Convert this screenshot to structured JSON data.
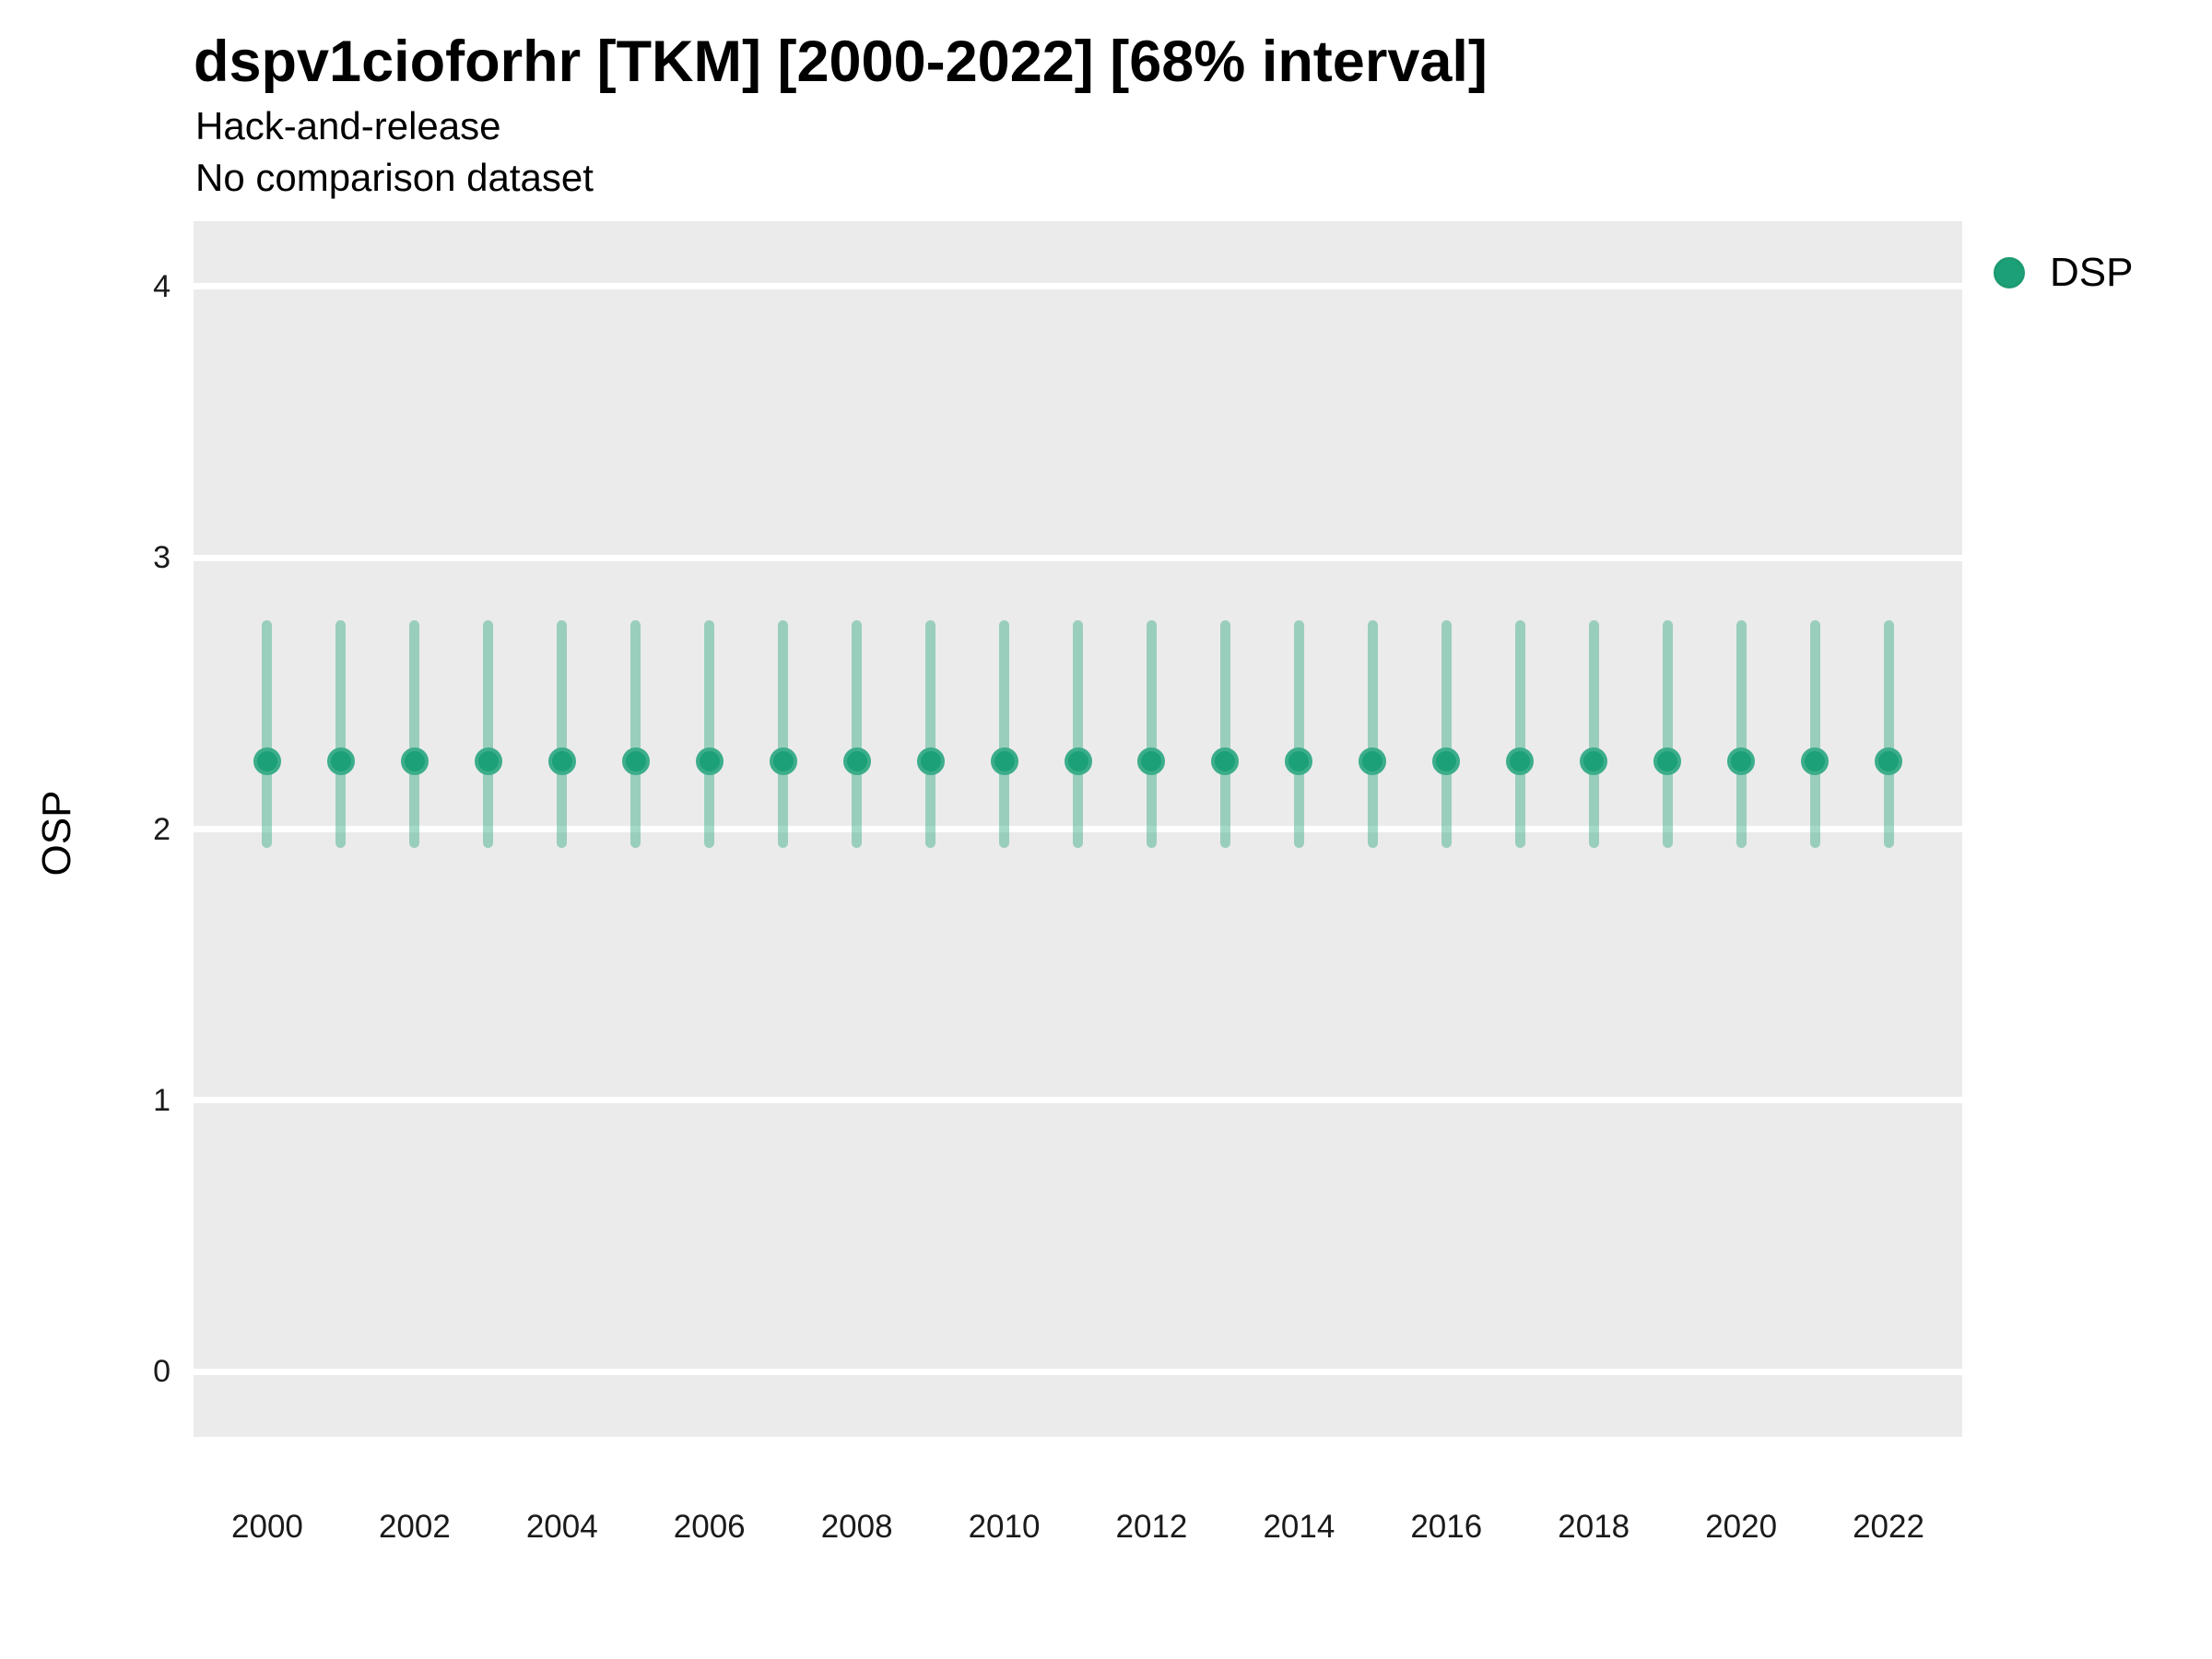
{
  "chart_data": {
    "type": "scatter",
    "title": "dspv1cioforhr [TKM] [2000-2022] [68% interval]",
    "subtitle": [
      "Hack-and-release",
      "No comparison dataset"
    ],
    "ylabel": "OSP",
    "xlabel": "",
    "interval_label": "68% interval",
    "x": [
      2000,
      2001,
      2002,
      2003,
      2004,
      2005,
      2006,
      2007,
      2008,
      2009,
      2010,
      2011,
      2012,
      2013,
      2014,
      2015,
      2016,
      2017,
      2018,
      2019,
      2020,
      2021,
      2022
    ],
    "series": [
      {
        "name": "DSP",
        "color": "#1CA077",
        "values": [
          2.25,
          2.25,
          2.25,
          2.25,
          2.25,
          2.25,
          2.25,
          2.25,
          2.25,
          2.25,
          2.25,
          2.25,
          2.25,
          2.25,
          2.25,
          2.25,
          2.25,
          2.25,
          2.25,
          2.25,
          2.25,
          2.25,
          2.25
        ],
        "lower": [
          1.93,
          1.93,
          1.93,
          1.93,
          1.93,
          1.93,
          1.93,
          1.93,
          1.93,
          1.93,
          1.93,
          1.93,
          1.93,
          1.93,
          1.93,
          1.93,
          1.93,
          1.93,
          1.93,
          1.93,
          1.93,
          1.93,
          1.93
        ],
        "upper": [
          2.77,
          2.77,
          2.77,
          2.77,
          2.77,
          2.77,
          2.77,
          2.77,
          2.77,
          2.77,
          2.77,
          2.77,
          2.77,
          2.77,
          2.77,
          2.77,
          2.77,
          2.77,
          2.77,
          2.77,
          2.77,
          2.77,
          2.77
        ]
      }
    ],
    "yticks": [
      0,
      1,
      2,
      3,
      4
    ],
    "xticks": [
      2000,
      2002,
      2004,
      2006,
      2008,
      2010,
      2012,
      2014,
      2016,
      2018,
      2020,
      2022
    ],
    "ylim": [
      -0.24,
      4.24
    ],
    "xlim": [
      1999,
      2023
    ],
    "grid": "horizontal-major-only",
    "legend_position": "right",
    "panel_bg": "#EBEBEB",
    "gridline_color": "#FFFFFF",
    "errorbar_color": "rgba(46,166,126,0.43)"
  }
}
